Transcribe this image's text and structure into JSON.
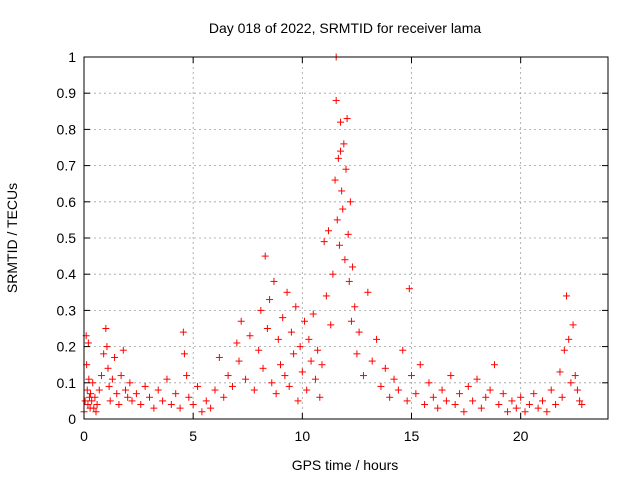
{
  "chart_data": {
    "type": "scatter",
    "title": "Day 018 of 2022, SRMTID for receiver lama",
    "xlabel": "GPS time / hours",
    "ylabel": "SRMTID / TECUs",
    "xlim": [
      0,
      24
    ],
    "ylim": [
      0,
      1
    ],
    "x_ticks": [
      0,
      5,
      10,
      15,
      20
    ],
    "x_tick_labels": [
      "0",
      "5",
      "10",
      "15",
      "20"
    ],
    "y_ticks": [
      0,
      0.1,
      0.2,
      0.3,
      0.4,
      0.5,
      0.6,
      0.7,
      0.8,
      0.9,
      1
    ],
    "y_tick_labels": [
      "0",
      "0.1",
      "0.2",
      "0.3",
      "0.4",
      "0.5",
      "0.6",
      "0.7",
      "0.8",
      "0.9",
      "1"
    ],
    "grid": true,
    "marker": "+",
    "marker_color": "#ff0000",
    "series": [
      {
        "name": "SRMTID",
        "x": [
          0.0,
          0.05,
          0.1,
          0.12,
          0.15,
          0.18,
          0.2,
          0.22,
          0.25,
          0.28,
          0.3,
          0.35,
          0.4,
          0.45,
          0.5,
          0.55,
          0.6,
          0.7,
          0.8,
          0.9,
          1.0,
          1.05,
          1.1,
          1.15,
          1.2,
          1.3,
          1.4,
          1.5,
          1.6,
          1.7,
          1.8,
          1.9,
          2.0,
          2.1,
          2.2,
          2.4,
          2.6,
          2.8,
          3.0,
          3.2,
          3.4,
          3.6,
          3.8,
          4.0,
          4.2,
          4.4,
          4.55,
          4.6,
          4.7,
          4.8,
          5.0,
          5.2,
          5.4,
          5.6,
          5.8,
          6.0,
          6.2,
          6.4,
          6.6,
          6.8,
          7.0,
          7.1,
          7.2,
          7.4,
          7.6,
          7.8,
          8.0,
          8.1,
          8.2,
          8.3,
          8.4,
          8.5,
          8.6,
          8.7,
          8.8,
          8.9,
          9.0,
          9.1,
          9.2,
          9.3,
          9.4,
          9.5,
          9.6,
          9.7,
          9.8,
          9.9,
          10.0,
          10.1,
          10.2,
          10.3,
          10.4,
          10.5,
          10.6,
          10.7,
          10.8,
          10.9,
          11.0,
          11.1,
          11.2,
          11.3,
          11.4,
          11.5,
          11.55,
          11.6,
          11.65,
          11.7,
          11.75,
          11.8,
          11.85,
          11.9,
          11.95,
          12.0,
          12.05,
          12.1,
          12.15,
          12.2,
          12.25,
          12.3,
          12.4,
          12.5,
          12.6,
          12.8,
          13.0,
          13.2,
          13.4,
          13.6,
          13.8,
          14.0,
          14.2,
          14.4,
          14.6,
          14.8,
          14.9,
          15.0,
          15.2,
          15.4,
          15.6,
          15.8,
          16.0,
          16.2,
          16.4,
          16.6,
          16.8,
          17.0,
          17.2,
          17.4,
          17.6,
          17.8,
          18.0,
          18.2,
          18.4,
          18.6,
          18.8,
          19.0,
          19.2,
          19.4,
          19.6,
          19.8,
          20.0,
          20.2,
          20.4,
          20.6,
          20.8,
          21.0,
          21.2,
          21.4,
          21.6,
          21.8,
          21.9,
          22.0,
          22.1,
          22.2,
          22.3,
          22.4,
          22.5,
          22.6,
          22.7,
          22.8,
          11.55,
          11.75
        ],
        "y": [
          0.02,
          0.05,
          0.23,
          0.15,
          0.08,
          0.04,
          0.21,
          0.11,
          0.06,
          0.03,
          0.07,
          0.05,
          0.1,
          0.03,
          0.06,
          0.02,
          0.04,
          0.08,
          0.12,
          0.18,
          0.25,
          0.2,
          0.14,
          0.09,
          0.05,
          0.11,
          0.17,
          0.07,
          0.04,
          0.12,
          0.19,
          0.08,
          0.06,
          0.1,
          0.05,
          0.07,
          0.04,
          0.09,
          0.06,
          0.03,
          0.08,
          0.05,
          0.11,
          0.04,
          0.07,
          0.03,
          0.24,
          0.18,
          0.12,
          0.06,
          0.04,
          0.09,
          0.02,
          0.05,
          0.03,
          0.08,
          0.17,
          0.06,
          0.12,
          0.09,
          0.21,
          0.16,
          0.27,
          0.11,
          0.23,
          0.08,
          0.19,
          0.3,
          0.14,
          0.45,
          0.25,
          0.33,
          0.1,
          0.38,
          0.07,
          0.22,
          0.15,
          0.28,
          0.12,
          0.35,
          0.09,
          0.24,
          0.18,
          0.31,
          0.05,
          0.2,
          0.13,
          0.27,
          0.08,
          0.22,
          0.16,
          0.29,
          0.11,
          0.19,
          0.06,
          0.15,
          0.49,
          0.34,
          0.52,
          0.26,
          0.4,
          0.66,
          0.88,
          0.55,
          0.72,
          0.48,
          0.82,
          0.63,
          0.58,
          0.76,
          0.44,
          0.69,
          0.83,
          0.51,
          0.38,
          0.6,
          0.27,
          0.42,
          0.31,
          0.18,
          0.24,
          0.12,
          0.35,
          0.16,
          0.22,
          0.09,
          0.14,
          0.06,
          0.11,
          0.08,
          0.19,
          0.05,
          0.36,
          0.12,
          0.07,
          0.15,
          0.04,
          0.1,
          0.06,
          0.03,
          0.08,
          0.05,
          0.12,
          0.04,
          0.07,
          0.02,
          0.09,
          0.05,
          0.11,
          0.03,
          0.06,
          0.08,
          0.15,
          0.04,
          0.07,
          0.02,
          0.05,
          0.03,
          0.06,
          0.02,
          0.04,
          0.07,
          0.03,
          0.05,
          0.02,
          0.08,
          0.04,
          0.13,
          0.06,
          0.19,
          0.34,
          0.22,
          0.1,
          0.26,
          0.12,
          0.08,
          0.05,
          0.04,
          1.0,
          0.74
        ]
      }
    ]
  }
}
